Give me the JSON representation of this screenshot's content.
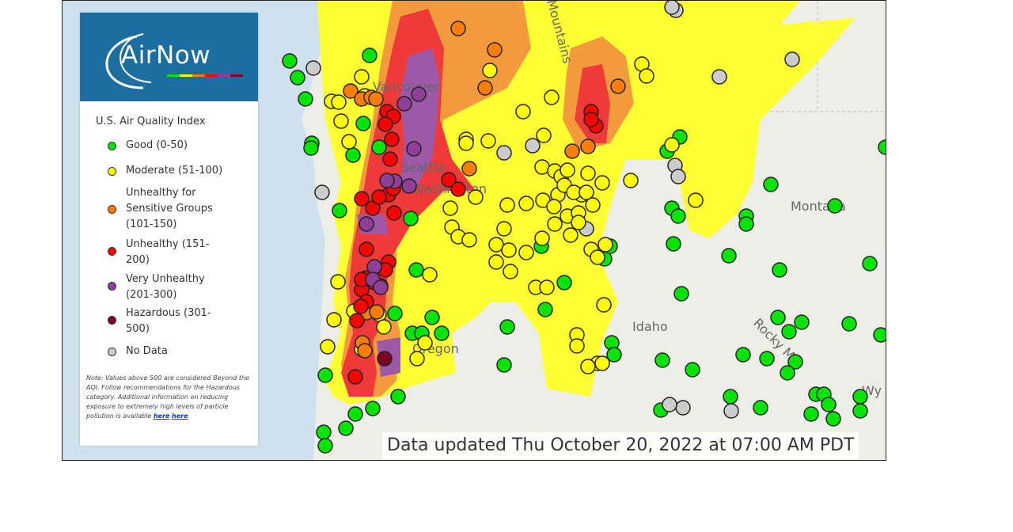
{
  "logo": "AirNow",
  "legend": {
    "title": "U.S. Air Quality Index",
    "items": [
      "Good (0-50)",
      "Moderate (51-100)",
      "Unhealthy for Sensitive Groups (101-150)",
      "Unhealthy (151-200)",
      "Very Unhealthy (201-300)",
      "Hazardous (301-500)",
      "No Data"
    ],
    "note": "Note: Values above 500 are considered Beyond the AQI. Follow recommendations for the Hazardous category. Additional information on reducing exposure to extremely high levels of particle pollution is available",
    "links": [
      "here",
      "here"
    ]
  },
  "map_labels": [
    "Vancouver",
    "Seattle",
    "Washington",
    "Oregon",
    "Idaho",
    "Montana",
    "Rocky Mo",
    "Wy",
    "Mountains"
  ],
  "footer": "Data updated Thu October 20, 2022 at 07:00 AM PDT"
}
